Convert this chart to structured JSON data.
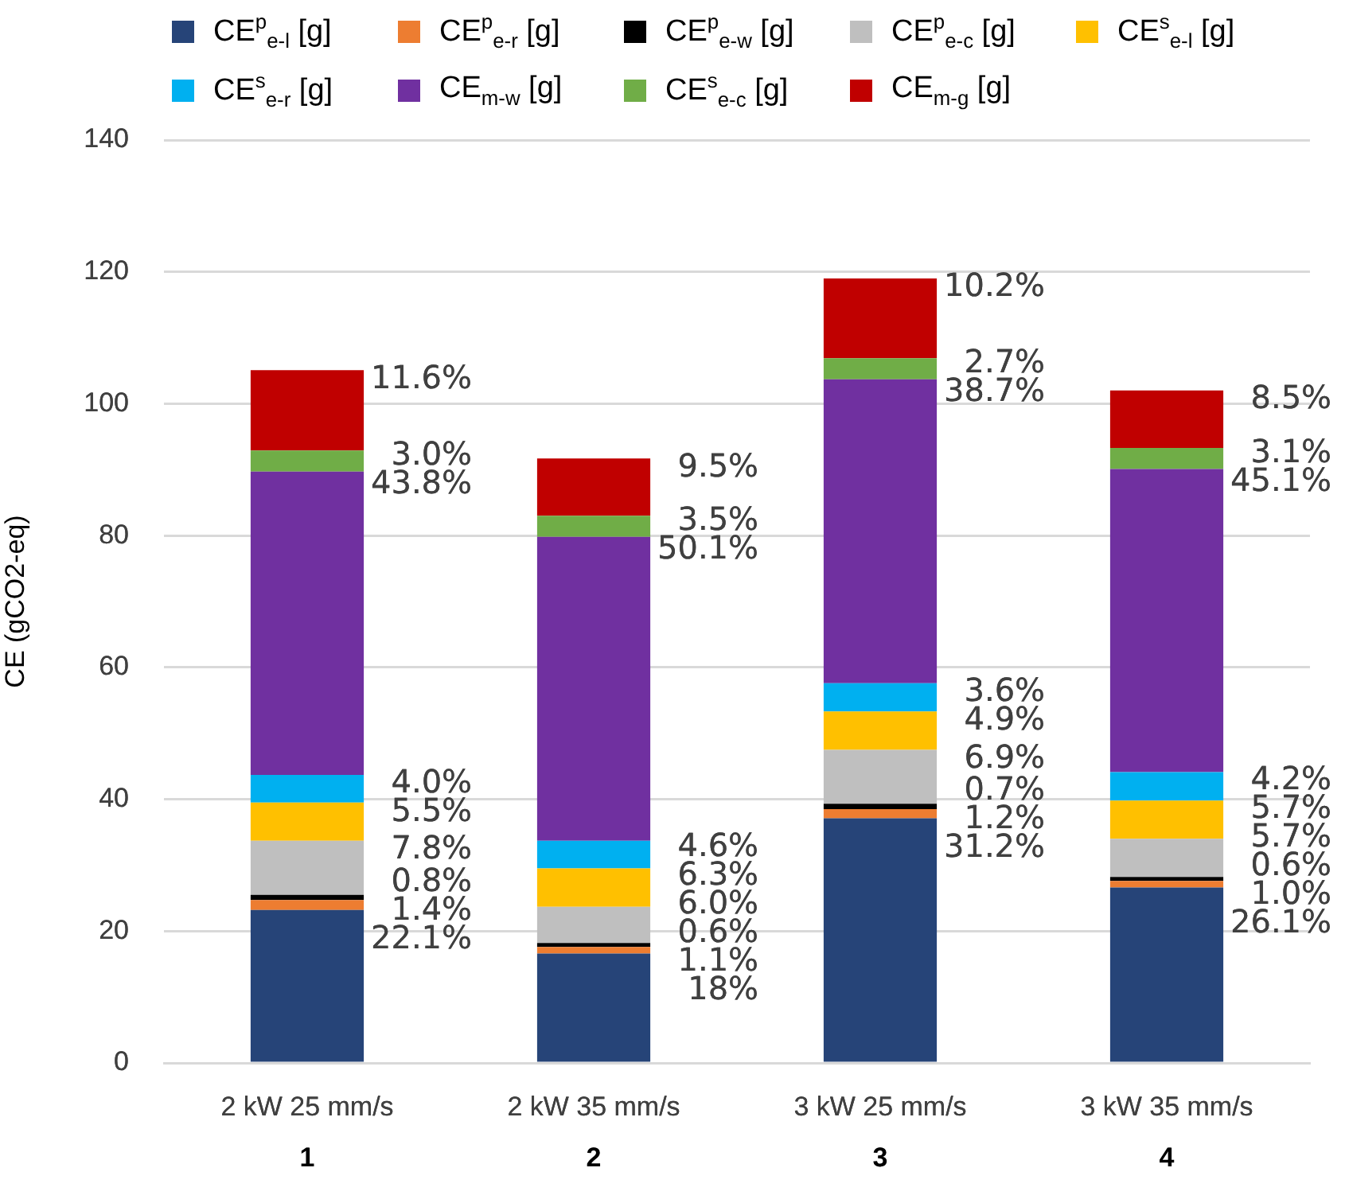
{
  "chart_data": {
    "type": "bar",
    "stacked": true,
    "ylabel": "CE (gCO2-eq)",
    "categories": [
      "2 kW 25 mm/s\n1",
      "2 kW 35 mm/s\n2",
      "3 kW 25 mm/s\n3",
      "3 kW 35 mm/s\n4"
    ],
    "ylim": [
      0,
      140
    ],
    "yticks": [
      0,
      20,
      40,
      60,
      80,
      100,
      120,
      140
    ],
    "grid": "y",
    "legend": "top",
    "series": [
      {
        "name": "CE$^{p}$$_{e-l}$ [g]",
        "color": "#264478",
        "values": [
          23.2,
          16.6,
          37.1,
          26.6
        ]
      },
      {
        "name": "CE$^{p}$$_{e-r}$ [g]",
        "color": "#ed7d31",
        "values": [
          1.5,
          1.0,
          1.4,
          1.0
        ]
      },
      {
        "name": "CE$^{p}$$_{e-w}$ [g]",
        "color": "#000000",
        "values": [
          0.8,
          0.6,
          0.8,
          0.6
        ]
      },
      {
        "name": "CE$^{p}$$_{e-c}$ [g]",
        "color": "#bfbfbf",
        "values": [
          8.2,
          5.5,
          8.2,
          5.8
        ]
      },
      {
        "name": "CE$^{s}$$_{e-l}$ [g]",
        "color": "#ffc000",
        "values": [
          5.8,
          5.8,
          5.8,
          5.8
        ]
      },
      {
        "name": "CE$^{s}$$_{e-r}$ [g]",
        "color": "#00b0f0",
        "values": [
          4.2,
          4.2,
          4.3,
          4.3
        ]
      },
      {
        "name": "CE$_{m-w}$ [g]",
        "color": "#7030a0",
        "values": [
          46.0,
          46.1,
          46.1,
          46.0
        ]
      },
      {
        "name": "CE$^{s}$$_{e-c}$ [g]",
        "color": "#70ad47",
        "values": [
          3.2,
          3.2,
          3.2,
          3.2
        ]
      },
      {
        "name": "CE$_{m-g}$ [g]",
        "color": "#c00000",
        "values": [
          12.2,
          8.7,
          12.1,
          8.7
        ]
      }
    ],
    "annotations": [
      {
        "text": "22.1%",
        "x": "2 kW 25 mm/s\n1",
        "y": 23.2
      },
      {
        "text": "1.4%",
        "x": "2 kW 25 mm/s\n1",
        "y": 24.7
      },
      {
        "text": "0.8%",
        "x": "2 kW 25 mm/s\n1",
        "y": 25.5
      },
      {
        "text": "7.8%",
        "x": "2 kW 25 mm/s\n1",
        "y": 33.7
      },
      {
        "text": "5.5%",
        "x": "2 kW 25 mm/s\n1",
        "y": 39.5
      },
      {
        "text": "4.0%",
        "x": "2 kW 25 mm/s\n1",
        "y": 43.7
      },
      {
        "text": "43.8%",
        "x": "2 kW 25 mm/s\n1",
        "y": 89.7
      },
      {
        "text": "3.0%",
        "x": "2 kW 25 mm/s\n1",
        "y": 92.9
      },
      {
        "text": "11.6%",
        "x": "2 kW 25 mm/s\n1",
        "y": 105.1
      },
      {
        "text": "18%",
        "x": "2 kW 35 mm/s\n2",
        "y": 16.6
      },
      {
        "text": "1.1%",
        "x": "2 kW 35 mm/s\n2",
        "y": 17.6
      },
      {
        "text": "0.6%",
        "x": "2 kW 35 mm/s\n2",
        "y": 18.2
      },
      {
        "text": "6.0%",
        "x": "2 kW 35 mm/s\n2",
        "y": 23.7
      },
      {
        "text": "6.3%",
        "x": "2 kW 35 mm/s\n2",
        "y": 29.5
      },
      {
        "text": "4.6%",
        "x": "2 kW 35 mm/s\n2",
        "y": 33.7
      },
      {
        "text": "50.1%",
        "x": "2 kW 35 mm/s\n2",
        "y": 79.8
      },
      {
        "text": "3.5%",
        "x": "2 kW 35 mm/s\n2",
        "y": 83.0
      },
      {
        "text": "9.5%",
        "x": "2 kW 35 mm/s\n2",
        "y": 91.7
      },
      {
        "text": "31.2%",
        "x": "3 kW 25 mm/s\n3",
        "y": 37.1
      },
      {
        "text": "1.2%",
        "x": "3 kW 25 mm/s\n3",
        "y": 38.5
      },
      {
        "text": "0.7%",
        "x": "3 kW 25 mm/s\n3",
        "y": 39.3
      },
      {
        "text": "6.9%",
        "x": "3 kW 25 mm/s\n3",
        "y": 47.5
      },
      {
        "text": "4.9%",
        "x": "3 kW 25 mm/s\n3",
        "y": 53.3
      },
      {
        "text": "3.6%",
        "x": "3 kW 25 mm/s\n3",
        "y": 57.6
      },
      {
        "text": "38.7%",
        "x": "3 kW 25 mm/s\n3",
        "y": 103.7
      },
      {
        "text": "2.7%",
        "x": "3 kW 25 mm/s\n3",
        "y": 106.9
      },
      {
        "text": "10.2%",
        "x": "3 kW 25 mm/s\n3",
        "y": 119.0
      },
      {
        "text": "26.1%",
        "x": "3 kW 35 mm/s\n4",
        "y": 26.6
      },
      {
        "text": "1.0%",
        "x": "3 kW 35 mm/s\n4",
        "y": 27.6
      },
      {
        "text": "0.6%",
        "x": "3 kW 35 mm/s\n4",
        "y": 28.2
      },
      {
        "text": "5.7%",
        "x": "3 kW 35 mm/s\n4",
        "y": 34.0
      },
      {
        "text": "5.7%",
        "x": "3 kW 35 mm/s\n4",
        "y": 39.8
      },
      {
        "text": "4.2%",
        "x": "3 kW 35 mm/s\n4",
        "y": 44.1
      },
      {
        "text": "45.1%",
        "x": "3 kW 35 mm/s\n4",
        "y": 90.1
      },
      {
        "text": "3.1%",
        "x": "3 kW 35 mm/s\n4",
        "y": 93.3
      },
      {
        "text": "8.5%",
        "x": "3 kW 35 mm/s\n4",
        "y": 102.0
      }
    ]
  }
}
